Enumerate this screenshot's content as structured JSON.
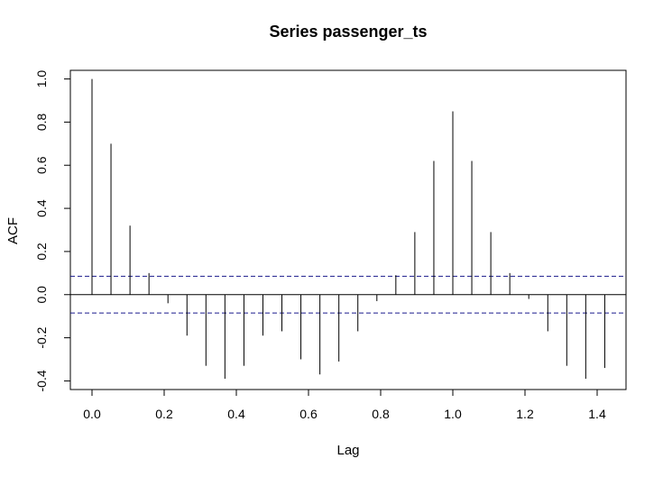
{
  "chart_data": {
    "type": "bar",
    "title": "Series  passenger_ts",
    "xlabel": "Lag",
    "ylabel": "ACF",
    "xlim": [
      -0.06,
      1.48
    ],
    "ylim": [
      -0.44,
      1.04
    ],
    "x_ticks": [
      "0.0",
      "0.2",
      "0.4",
      "0.6",
      "0.8",
      "1.0",
      "1.2",
      "1.4"
    ],
    "y_ticks": [
      "-0.4",
      "-0.2",
      "0.0",
      "0.2",
      "0.4",
      "0.6",
      "0.8",
      "1.0"
    ],
    "confidence_bound": 0.085,
    "series": [
      {
        "x": [
          0.0,
          0.0526,
          0.1053,
          0.1579,
          0.2105,
          0.2632,
          0.3158,
          0.3684,
          0.4211,
          0.4737,
          0.5263,
          0.5789,
          0.6316,
          0.6842,
          0.7368,
          0.7895,
          0.8421,
          0.8947,
          0.9474,
          1.0,
          1.0526,
          1.1053,
          1.1579,
          1.2105,
          1.2632,
          1.3158,
          1.3684,
          1.4211
        ],
        "values": [
          1.0,
          0.7,
          0.32,
          0.1,
          -0.04,
          -0.19,
          -0.33,
          -0.39,
          -0.33,
          -0.19,
          -0.17,
          -0.3,
          -0.37,
          -0.31,
          -0.17,
          -0.03,
          0.09,
          0.29,
          0.62,
          0.85,
          0.62,
          0.29,
          0.1,
          -0.02,
          -0.17,
          -0.33,
          -0.39,
          -0.34
        ]
      }
    ]
  }
}
